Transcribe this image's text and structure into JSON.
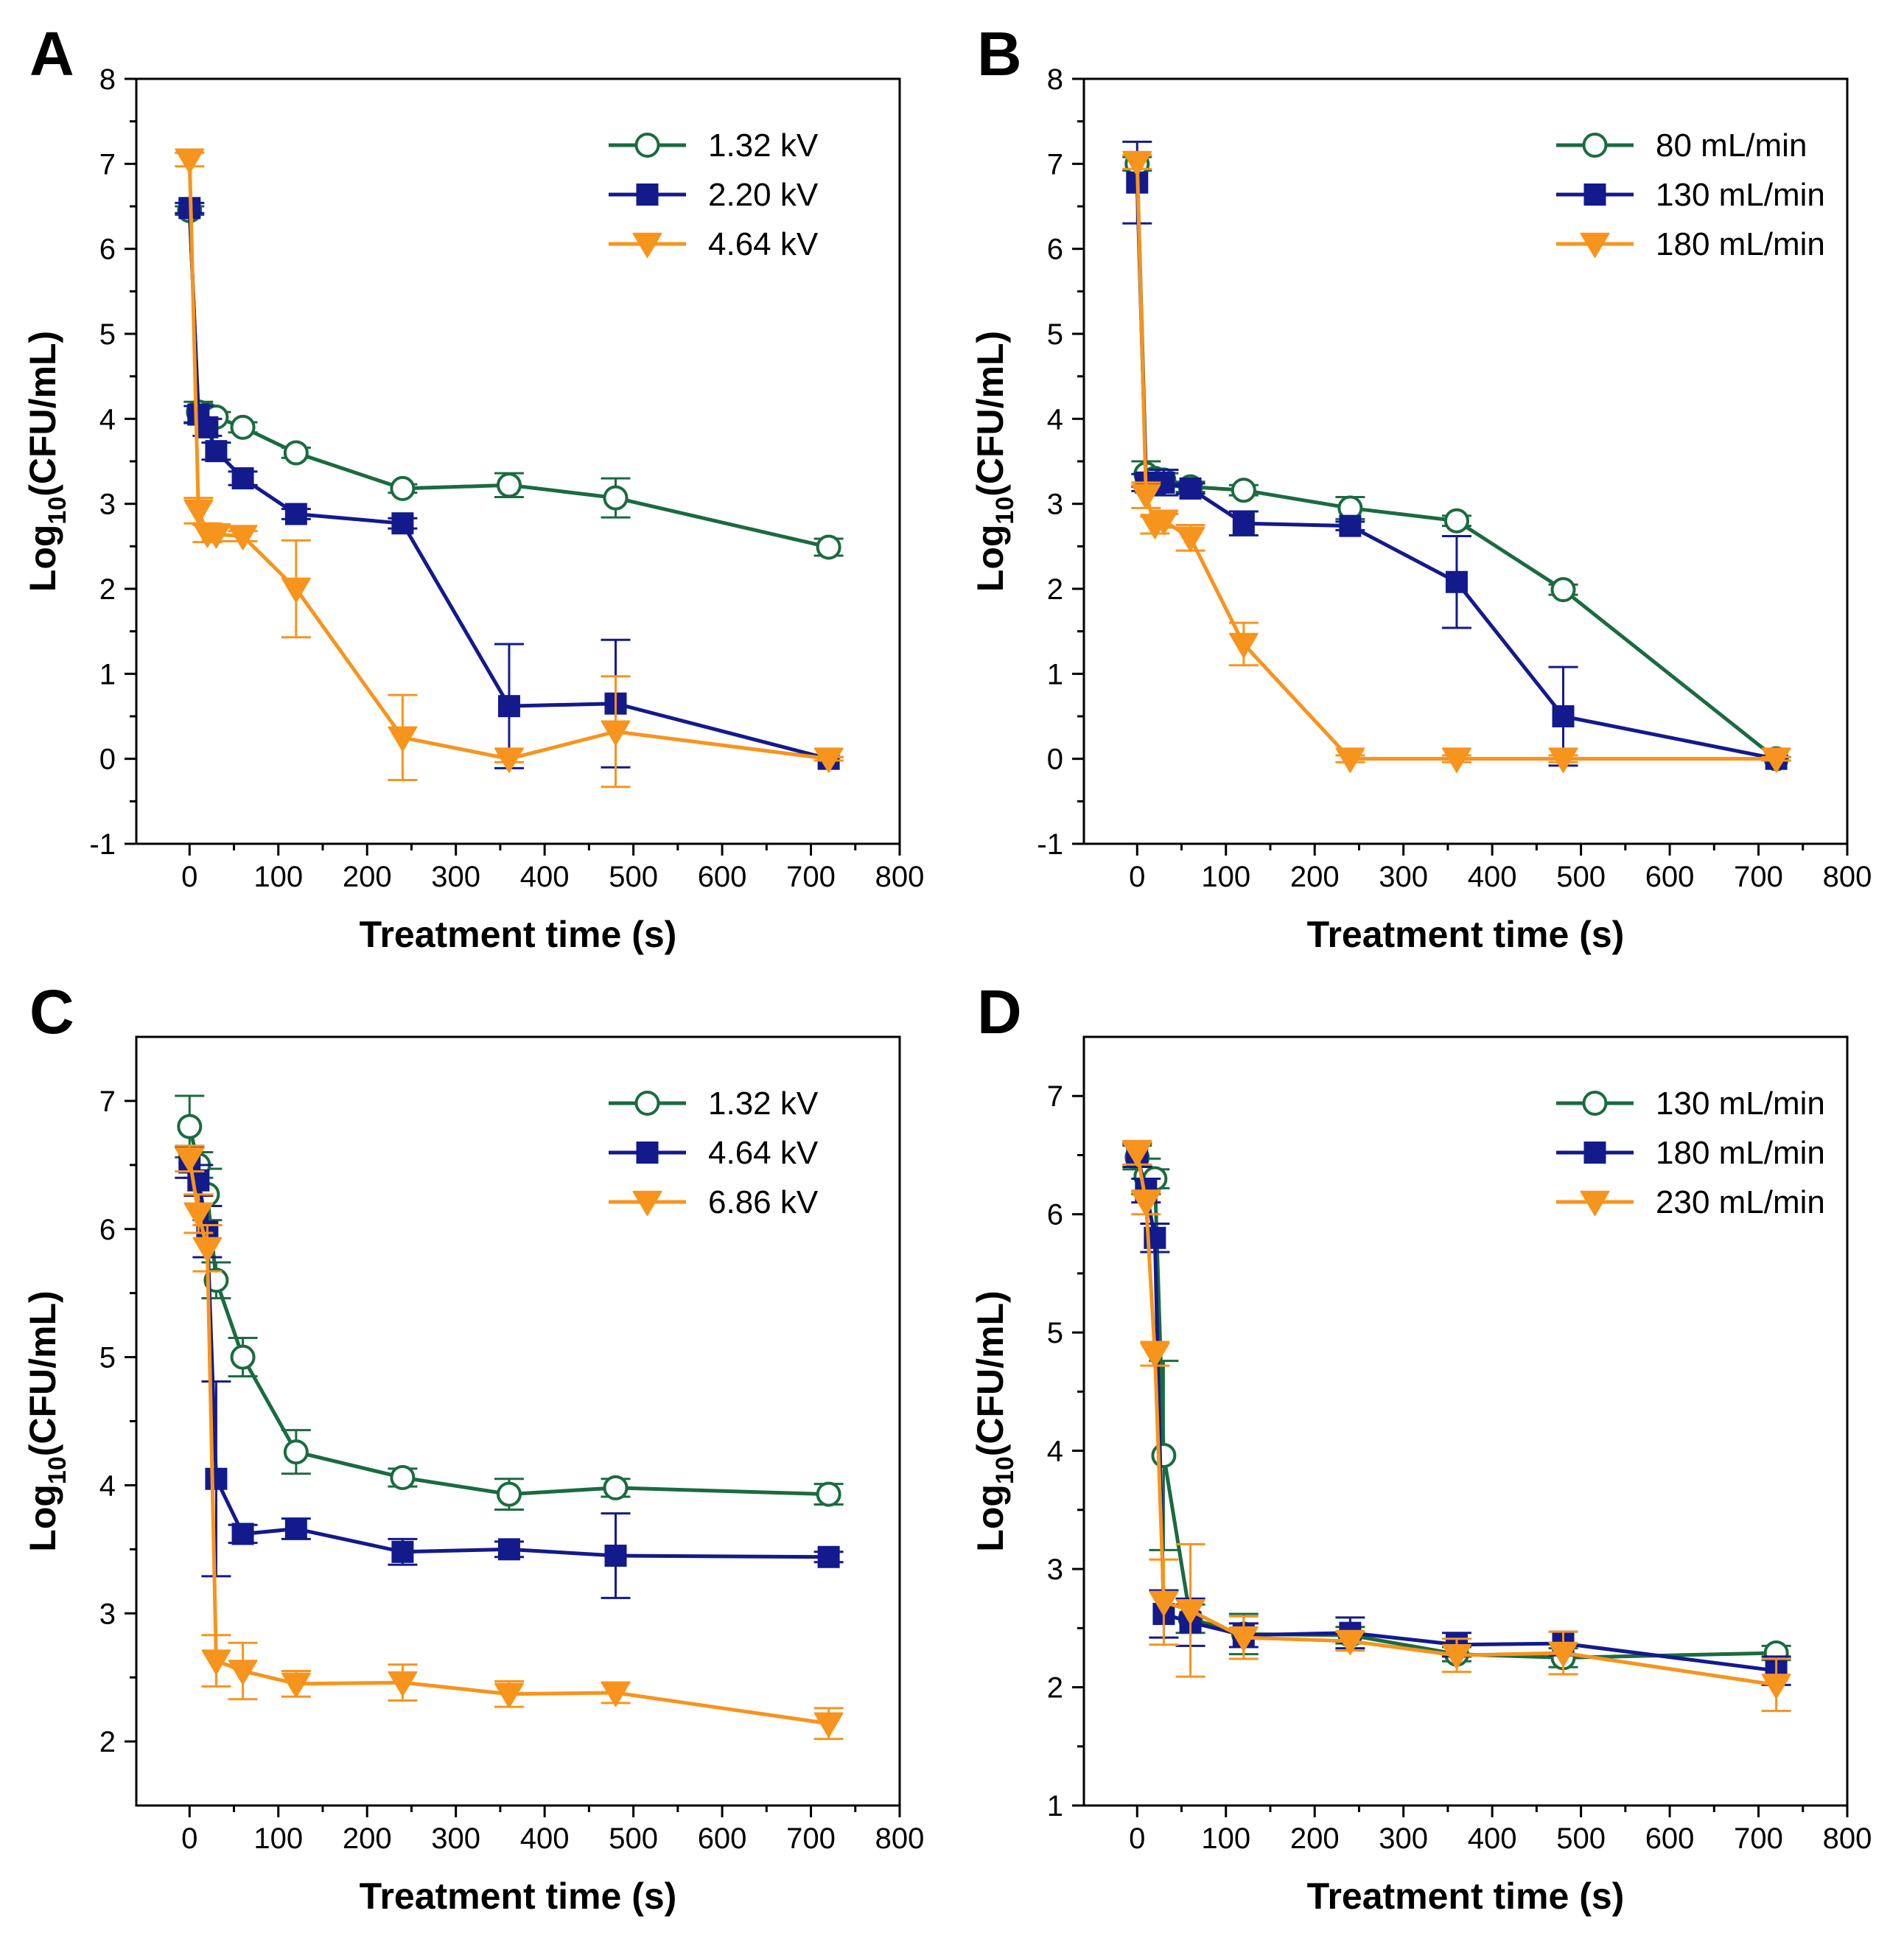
{
  "colors": {
    "green": "#1a6b40",
    "blue": "#131a8c",
    "orange": "#f7941d",
    "axis": "#000000"
  },
  "chart_data": [
    {
      "panel": "A",
      "type": "line",
      "xlabel": "Treatment time (s)",
      "ylabel_main": "Log",
      "ylabel_sub": "10",
      "ylabel_rest": "(CFU/mL)",
      "xlim": [
        -60,
        800
      ],
      "ylim": [
        -1,
        8
      ],
      "xticks": [
        0,
        100,
        200,
        300,
        400,
        500,
        600,
        700,
        800
      ],
      "yticks": [
        -1,
        0,
        1,
        2,
        3,
        4,
        5,
        6,
        7,
        8
      ],
      "legend_position": "top-right",
      "series": [
        {
          "name": "1.32 kV",
          "color": "green",
          "marker": "circle-open",
          "x": [
            0,
            10,
            20,
            30,
            60,
            120,
            240,
            360,
            480,
            720
          ],
          "y": [
            6.45,
            4.08,
            4.05,
            4.02,
            3.9,
            3.6,
            3.18,
            3.22,
            3.07,
            2.49
          ],
          "err": [
            0.05,
            0.12,
            0.08,
            0.06,
            0.06,
            0.06,
            0.05,
            0.14,
            0.23,
            0.1
          ]
        },
        {
          "name": "2.20 kV",
          "color": "blue",
          "marker": "square-filled",
          "x": [
            0,
            10,
            20,
            30,
            60,
            120,
            240,
            360,
            480,
            720
          ],
          "y": [
            6.48,
            4.05,
            3.9,
            3.62,
            3.3,
            2.88,
            2.77,
            0.62,
            0.65,
            0.0
          ],
          "err": [
            0.06,
            0.1,
            0.1,
            0.1,
            0.08,
            0.06,
            0.06,
            0.73,
            0.75,
            0.02
          ]
        },
        {
          "name": "4.64 kV",
          "color": "orange",
          "marker": "triangle-down",
          "x": [
            0,
            10,
            20,
            30,
            60,
            120,
            240,
            360,
            480,
            720
          ],
          "y": [
            7.05,
            2.92,
            2.65,
            2.64,
            2.62,
            2.0,
            0.25,
            0.0,
            0.32,
            0.0
          ],
          "err": [
            0.08,
            0.15,
            0.1,
            0.08,
            0.06,
            0.57,
            0.5,
            0.04,
            0.65,
            0.02
          ]
        }
      ]
    },
    {
      "panel": "B",
      "type": "line",
      "xlabel": "Treatment time (s)",
      "ylabel_main": "Log",
      "ylabel_sub": "10",
      "ylabel_rest": "(CFU/mL)",
      "xlim": [
        -60,
        800
      ],
      "ylim": [
        -1,
        8
      ],
      "xticks": [
        0,
        100,
        200,
        300,
        400,
        500,
        600,
        700,
        800
      ],
      "yticks": [
        -1,
        0,
        1,
        2,
        3,
        4,
        5,
        6,
        7,
        8
      ],
      "legend_position": "top-right",
      "series": [
        {
          "name": " 80 mL/min",
          "color": "green",
          "marker": "circle-open",
          "x": [
            0,
            10,
            20,
            30,
            60,
            120,
            240,
            360,
            480,
            720
          ],
          "y": [
            7.0,
            3.35,
            3.3,
            3.28,
            3.2,
            3.16,
            2.95,
            2.8,
            1.99,
            0.0
          ],
          "err": [
            0.08,
            0.15,
            0.1,
            0.08,
            0.06,
            0.06,
            0.13,
            0.06,
            0.06,
            0.02
          ]
        },
        {
          "name": "130 mL/min",
          "color": "blue",
          "marker": "square-filled",
          "x": [
            0,
            10,
            20,
            30,
            60,
            120,
            240,
            360,
            480,
            720
          ],
          "y": [
            6.78,
            3.25,
            3.24,
            3.25,
            3.18,
            2.77,
            2.74,
            2.08,
            0.5,
            0.0
          ],
          "err": [
            0.48,
            0.1,
            0.1,
            0.15,
            0.06,
            0.14,
            0.05,
            0.54,
            0.58,
            0.02
          ]
        },
        {
          "name": "180 mL/min",
          "color": "orange",
          "marker": "triangle-down",
          "x": [
            0,
            10,
            20,
            30,
            60,
            120,
            240,
            360,
            480,
            720
          ],
          "y": [
            7.02,
            3.1,
            2.75,
            2.8,
            2.6,
            1.35,
            0.0,
            0.0,
            0.0,
            0.0
          ],
          "err": [
            0.08,
            0.15,
            0.1,
            0.08,
            0.15,
            0.25,
            0.04,
            0.04,
            0.04,
            0.02
          ]
        }
      ]
    },
    {
      "panel": "C",
      "type": "line",
      "xlabel": "Treatment time (s)",
      "ylabel_main": "Log",
      "ylabel_sub": "10",
      "ylabel_rest": "(CFU/mL)",
      "xlim": [
        -60,
        800
      ],
      "ylim": [
        1.5,
        7.5
      ],
      "xticks": [
        0,
        100,
        200,
        300,
        400,
        500,
        600,
        700,
        800
      ],
      "yticks": [
        2,
        3,
        4,
        5,
        6,
        7
      ],
      "legend_position": "top-right",
      "series": [
        {
          "name": "1.32 kV",
          "color": "green",
          "marker": "circle-open",
          "x": [
            0,
            10,
            20,
            30,
            60,
            120,
            240,
            360,
            480,
            720
          ],
          "y": [
            6.8,
            6.5,
            6.27,
            5.6,
            5.0,
            4.26,
            4.06,
            3.93,
            3.98,
            3.93
          ],
          "err": [
            0.24,
            0.1,
            0.2,
            0.14,
            0.15,
            0.17,
            0.07,
            0.12,
            0.07,
            0.08
          ]
        },
        {
          "name": "4.64 kV",
          "color": "blue",
          "marker": "square-filled",
          "x": [
            0,
            10,
            20,
            30,
            60,
            120,
            240,
            360,
            480,
            720
          ],
          "y": [
            6.52,
            6.38,
            5.98,
            4.05,
            3.62,
            3.66,
            3.48,
            3.5,
            3.45,
            3.44
          ],
          "err": [
            0.12,
            0.12,
            0.2,
            0.76,
            0.07,
            0.08,
            0.1,
            0.06,
            0.33,
            0.04
          ]
        },
        {
          "name": "6.86 kV",
          "color": "orange",
          "marker": "triangle-down",
          "x": [
            0,
            10,
            20,
            30,
            60,
            120,
            240,
            360,
            480,
            720
          ],
          "y": [
            6.55,
            6.12,
            5.85,
            2.63,
            2.55,
            2.45,
            2.46,
            2.37,
            2.38,
            2.14
          ],
          "err": [
            0.1,
            0.15,
            0.18,
            0.2,
            0.22,
            0.1,
            0.14,
            0.1,
            0.08,
            0.12
          ]
        }
      ]
    },
    {
      "panel": "D",
      "type": "line",
      "xlabel": "Treatment time (s)",
      "ylabel_main": "Log",
      "ylabel_sub": "10",
      "ylabel_rest": "(CFU/mL)",
      "xlim": [
        -60,
        800
      ],
      "ylim": [
        1,
        7.5
      ],
      "xticks": [
        0,
        100,
        200,
        300,
        400,
        500,
        600,
        700,
        800
      ],
      "yticks": [
        1,
        2,
        3,
        4,
        5,
        6,
        7
      ],
      "legend_position": "top-right",
      "series": [
        {
          "name": "130 mL/min",
          "color": "green",
          "marker": "circle-open",
          "x": [
            0,
            10,
            20,
            30,
            60,
            120,
            240,
            360,
            480,
            720
          ],
          "y": [
            6.48,
            6.32,
            6.3,
            3.96,
            2.58,
            2.45,
            2.44,
            2.28,
            2.25,
            2.29
          ],
          "err": [
            0.1,
            0.15,
            0.08,
            0.8,
            0.12,
            0.17,
            0.07,
            0.06,
            0.08,
            0.06
          ]
        },
        {
          "name": "180 mL/min",
          "color": "blue",
          "marker": "square-filled",
          "x": [
            0,
            10,
            20,
            30,
            60,
            120,
            240,
            360,
            480,
            720
          ],
          "y": [
            6.5,
            6.2,
            5.8,
            2.62,
            2.55,
            2.44,
            2.46,
            2.36,
            2.37,
            2.14
          ],
          "err": [
            0.1,
            0.1,
            0.12,
            0.2,
            0.2,
            0.1,
            0.13,
            0.1,
            0.1,
            0.12
          ]
        },
        {
          "name": "230 mL/min",
          "color": "orange",
          "marker": "triangle-down",
          "x": [
            0,
            10,
            20,
            30,
            60,
            120,
            240,
            360,
            480,
            720
          ],
          "y": [
            6.52,
            6.1,
            4.82,
            2.72,
            2.65,
            2.42,
            2.39,
            2.27,
            2.29,
            2.02
          ],
          "err": [
            0.1,
            0.1,
            0.1,
            0.36,
            0.56,
            0.18,
            0.08,
            0.14,
            0.18,
            0.22
          ]
        }
      ]
    }
  ]
}
